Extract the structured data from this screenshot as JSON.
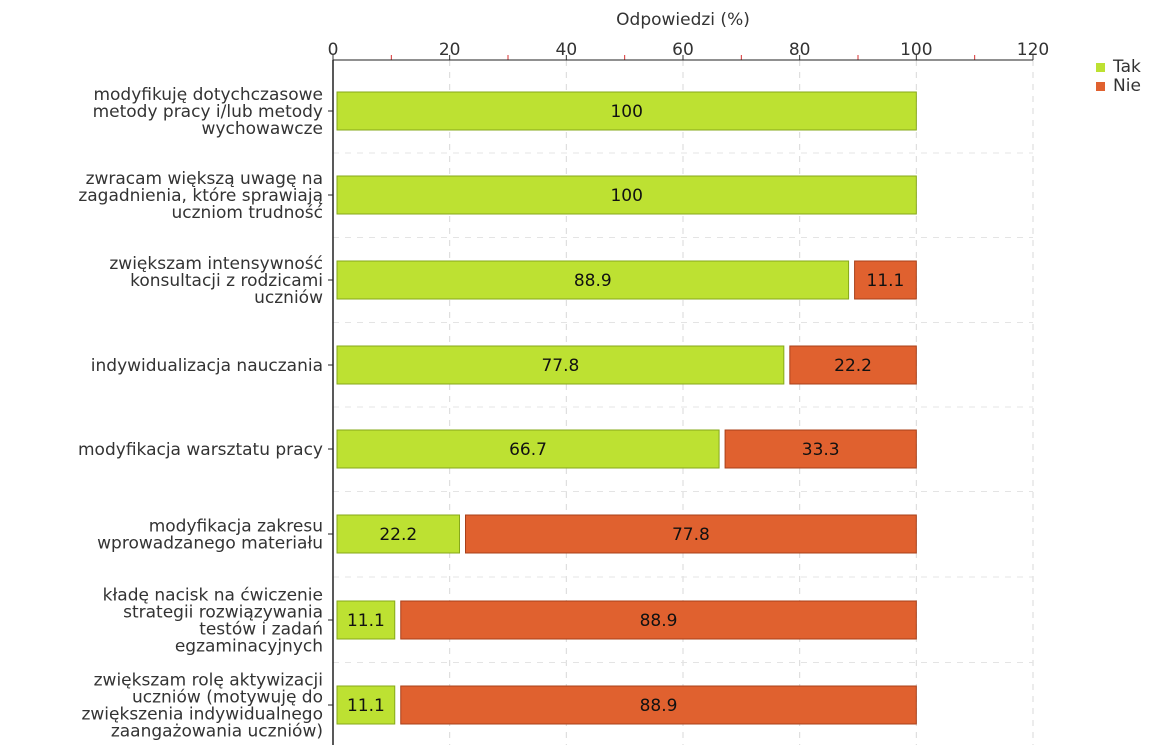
{
  "chart_data": {
    "type": "bar",
    "orientation": "horizontal",
    "stacked": true,
    "xlabel": "Odpowiedzi (%)",
    "xlim": [
      0,
      120
    ],
    "xticks": [
      0,
      20,
      40,
      60,
      80,
      100,
      120
    ],
    "grid": true,
    "legend_position": "top-right",
    "categories": [
      [
        "modyfikuję dotychczasowe",
        "metody pracy i/lub metody",
        "wychowawcze"
      ],
      [
        "zwracam większą uwagę na",
        "zagadnienia, które sprawiają",
        "uczniom trudność"
      ],
      [
        "zwiększam intensywność",
        "konsultacji z rodzicami",
        "uczniów"
      ],
      [
        "indywidualizacja nauczania"
      ],
      [
        "modyfikacja warsztatu pracy"
      ],
      [
        "modyfikacja zakresu",
        "wprowadzanego materiału"
      ],
      [
        "kładę nacisk na ćwiczenie",
        "strategii rozwiązywania",
        "testów i zadań",
        "egzaminacyjnych"
      ],
      [
        "zwiększam rolę aktywizacji",
        "uczniów (motywuję do",
        "zwiększenia indywidualnego",
        "zaangażowania uczniów)"
      ]
    ],
    "series": [
      {
        "name": "Tak",
        "color": "#bde132",
        "border": "#86a81a",
        "values": [
          100,
          100,
          88.9,
          77.8,
          66.7,
          22.2,
          11.1,
          11.1
        ],
        "labels": [
          "100",
          "100",
          "88.9",
          "77.8",
          "66.7",
          "22.2",
          "11.1",
          "11.1"
        ]
      },
      {
        "name": "Nie",
        "color": "#e0612f",
        "border": "#a8401a",
        "values": [
          0,
          0,
          11.1,
          22.2,
          33.3,
          77.8,
          88.9,
          88.9
        ],
        "labels": [
          "",
          "",
          "11.1",
          "22.2",
          "33.3",
          "77.8",
          "88.9",
          "88.9"
        ]
      }
    ]
  }
}
